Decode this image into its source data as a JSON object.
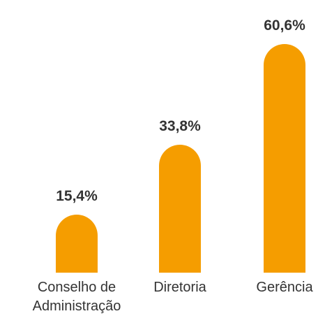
{
  "chart_data": {
    "type": "bar",
    "categories": [
      "Conselho de Administração",
      "Diretoria",
      "Gerência"
    ],
    "values": [
      15.4,
      33.8,
      60.6
    ],
    "value_labels": [
      "15,4%",
      "33,8%",
      "60,6%"
    ],
    "color": "#f59d00"
  }
}
